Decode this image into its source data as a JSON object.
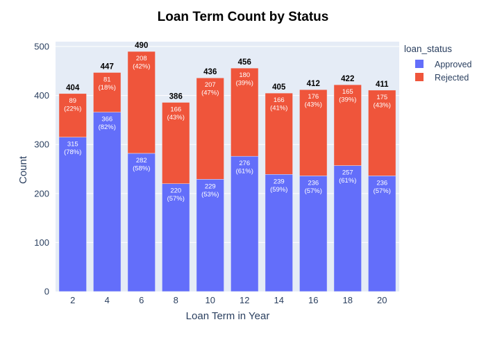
{
  "chart_data": {
    "type": "bar",
    "stacked": true,
    "title": "Loan Term Count by Status",
    "xlabel": "Loan Term in Year",
    "ylabel": "Count",
    "ylim": [
      0,
      510
    ],
    "yticks": [
      0,
      100,
      200,
      300,
      400,
      500
    ],
    "categories": [
      "2",
      "4",
      "6",
      "8",
      "10",
      "12",
      "14",
      "16",
      "18",
      "20"
    ],
    "series": [
      {
        "name": "Approved",
        "color": "#636efa",
        "values": [
          315,
          366,
          282,
          220,
          229,
          276,
          239,
          236,
          257,
          236
        ],
        "labels": [
          "315 (78%)",
          "366 (82%)",
          "282 (58%)",
          "220 (57%)",
          "229 (53%)",
          "276 (61%)",
          "239 (59%)",
          "236 (57%)",
          "257 (61%)",
          "236 (57%)"
        ]
      },
      {
        "name": "Rejected",
        "color": "#ef553b",
        "values": [
          89,
          81,
          208,
          166,
          207,
          180,
          166,
          176,
          165,
          175
        ],
        "labels": [
          "89 (22%)",
          "81 (18%)",
          "208 (42%)",
          "166 (43%)",
          "207 (47%)",
          "180 (39%)",
          "166 (41%)",
          "176 (43%)",
          "165 (39%)",
          "175 (43%)"
        ]
      }
    ],
    "totals": [
      404,
      447,
      490,
      386,
      436,
      456,
      405,
      412,
      422,
      411
    ],
    "legend": {
      "title": "loan_status",
      "position": "top-right"
    },
    "grid": true,
    "plot_background": "#e5ecf6"
  }
}
